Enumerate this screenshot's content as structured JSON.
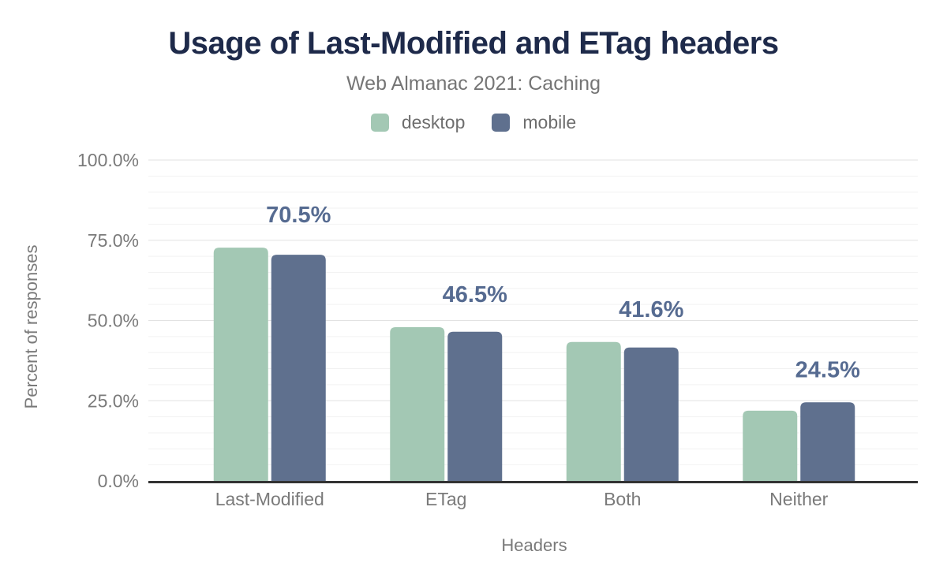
{
  "chart": {
    "colors": {
      "background": "#ffffff",
      "title_text": "#1e2a4a",
      "subtitle_text": "#757575",
      "axis_text": "#7a7a7a",
      "legend_text": "#6e6e6e",
      "value_label": "#566b91",
      "desktop_series": "#a3c8b4",
      "mobile_series": "#5f708e",
      "grid_major": "#e2e2e2",
      "grid_minor": "#f2f2f2",
      "axis_line": "#333333"
    }
  },
  "chart_data": {
    "type": "bar",
    "title": "Usage of Last-Modified and ETag headers",
    "subtitle": "Web Almanac 2021: Caching",
    "xlabel": "Headers",
    "ylabel": "Percent of responses",
    "categories": [
      "Last-Modified",
      "ETag",
      "Both",
      "Neither"
    ],
    "series": [
      {
        "name": "desktop",
        "values": [
          72.7,
          47.9,
          43.3,
          21.9
        ]
      },
      {
        "name": "mobile",
        "values": [
          70.5,
          46.5,
          41.6,
          24.5
        ]
      }
    ],
    "value_labels": [
      "70.5%",
      "46.5%",
      "41.6%",
      "24.5%"
    ],
    "ylim": [
      0,
      100
    ],
    "yticks": [
      {
        "value": 0,
        "label": "0.0%"
      },
      {
        "value": 25,
        "label": "25.0%"
      },
      {
        "value": 50,
        "label": "50.0%"
      },
      {
        "value": 75,
        "label": "75.0%"
      },
      {
        "value": 100,
        "label": "100.0%"
      }
    ],
    "grid": {
      "horizontal": true,
      "minor_every": 5,
      "major_every": 25
    },
    "legend_position": "top"
  }
}
